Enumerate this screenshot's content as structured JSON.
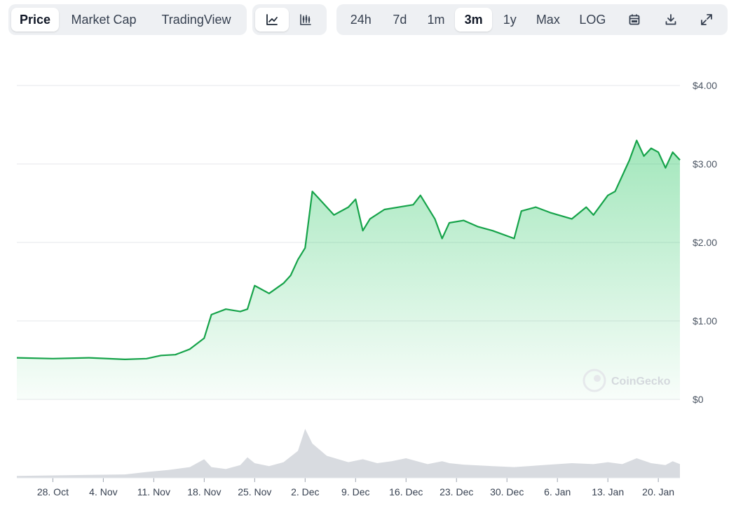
{
  "toolbar": {
    "metric_tabs": [
      {
        "label": "Price",
        "active": true
      },
      {
        "label": "Market Cap",
        "active": false
      },
      {
        "label": "TradingView",
        "active": false
      }
    ],
    "chart_type_buttons": [
      {
        "icon": "line-chart-icon",
        "active": true
      },
      {
        "icon": "candlestick-chart-icon",
        "active": false
      }
    ],
    "ranges": [
      {
        "label": "24h",
        "active": false
      },
      {
        "label": "7d",
        "active": false
      },
      {
        "label": "1m",
        "active": false
      },
      {
        "label": "3m",
        "active": true
      },
      {
        "label": "1y",
        "active": false
      },
      {
        "label": "Max",
        "active": false
      },
      {
        "label": "LOG",
        "active": false
      }
    ],
    "tool_icons": [
      "calendar-icon",
      "download-icon",
      "expand-icon"
    ]
  },
  "watermark": "CoinGecko",
  "colors": {
    "line": "#16a34a",
    "fill": "#22c55e",
    "volume": "#d1d5db",
    "grid": "#e5e7eb"
  },
  "chart_data": {
    "type": "area",
    "title": "",
    "xlabel": "",
    "ylabel": "",
    "ylim": [
      0,
      4
    ],
    "y_ticks": [
      {
        "v": 0,
        "label": "$0"
      },
      {
        "v": 1,
        "label": "$1.00"
      },
      {
        "v": 2,
        "label": "$2.00"
      },
      {
        "v": 3,
        "label": "$3.00"
      },
      {
        "v": 4,
        "label": "$4.00"
      }
    ],
    "x_ticks": [
      "28. Oct",
      "4. Nov",
      "11. Nov",
      "18. Nov",
      "25. Nov",
      "2. Dec",
      "9. Dec",
      "16. Dec",
      "23. Dec",
      "30. Dec",
      "6. Jan",
      "13. Jan",
      "20. Jan"
    ],
    "x_start": "2024-10-23",
    "x_end": "2025-01-23",
    "grid": true,
    "series": [
      {
        "name": "Price",
        "x": [
          "2024-10-23",
          "2024-10-28",
          "2024-11-02",
          "2024-11-07",
          "2024-11-10",
          "2024-11-12",
          "2024-11-14",
          "2024-11-16",
          "2024-11-18",
          "2024-11-19",
          "2024-11-21",
          "2024-11-23",
          "2024-11-24",
          "2024-11-25",
          "2024-11-27",
          "2024-11-29",
          "2024-11-30",
          "2024-12-01",
          "2024-12-02",
          "2024-12-03",
          "2024-12-04",
          "2024-12-06",
          "2024-12-08",
          "2024-12-09",
          "2024-12-10",
          "2024-12-11",
          "2024-12-13",
          "2024-12-15",
          "2024-12-17",
          "2024-12-18",
          "2024-12-20",
          "2024-12-21",
          "2024-12-22",
          "2024-12-24",
          "2024-12-26",
          "2024-12-28",
          "2024-12-31",
          "2025-01-01",
          "2025-01-03",
          "2025-01-05",
          "2025-01-08",
          "2025-01-10",
          "2025-01-11",
          "2025-01-13",
          "2025-01-14",
          "2025-01-16",
          "2025-01-17",
          "2025-01-18",
          "2025-01-19",
          "2025-01-20",
          "2025-01-21",
          "2025-01-22",
          "2025-01-23"
        ],
        "values": [
          0.53,
          0.52,
          0.53,
          0.51,
          0.52,
          0.56,
          0.57,
          0.64,
          0.78,
          1.08,
          1.15,
          1.12,
          1.15,
          1.45,
          1.35,
          1.48,
          1.58,
          1.78,
          1.93,
          2.65,
          2.55,
          2.35,
          2.45,
          2.55,
          2.15,
          2.3,
          2.42,
          2.45,
          2.48,
          2.6,
          2.3,
          2.05,
          2.25,
          2.28,
          2.2,
          2.15,
          2.05,
          2.4,
          2.45,
          2.38,
          2.3,
          2.45,
          2.35,
          2.6,
          2.65,
          3.05,
          3.3,
          3.1,
          3.2,
          3.15,
          2.95,
          3.15,
          3.05
        ]
      },
      {
        "name": "Volume",
        "x": [
          "2024-10-23",
          "2024-10-28",
          "2024-11-02",
          "2024-11-07",
          "2024-11-10",
          "2024-11-13",
          "2024-11-16",
          "2024-11-18",
          "2024-11-19",
          "2024-11-21",
          "2024-11-23",
          "2024-11-24",
          "2024-11-25",
          "2024-11-27",
          "2024-11-29",
          "2024-12-01",
          "2024-12-02",
          "2024-12-03",
          "2024-12-05",
          "2024-12-08",
          "2024-12-10",
          "2024-12-12",
          "2024-12-14",
          "2024-12-16",
          "2024-12-19",
          "2024-12-21",
          "2024-12-22",
          "2024-12-24",
          "2024-12-28",
          "2024-12-31",
          "2025-01-04",
          "2025-01-08",
          "2025-01-11",
          "2025-01-13",
          "2025-01-15",
          "2025-01-17",
          "2025-01-18",
          "2025-01-19",
          "2025-01-21",
          "2025-01-22",
          "2025-01-23"
        ],
        "values": [
          0.04,
          0.05,
          0.06,
          0.07,
          0.12,
          0.16,
          0.22,
          0.38,
          0.22,
          0.18,
          0.26,
          0.42,
          0.3,
          0.24,
          0.32,
          0.55,
          1.0,
          0.7,
          0.45,
          0.32,
          0.38,
          0.3,
          0.34,
          0.4,
          0.28,
          0.34,
          0.3,
          0.27,
          0.24,
          0.22,
          0.26,
          0.3,
          0.28,
          0.32,
          0.28,
          0.4,
          0.35,
          0.3,
          0.26,
          0.34,
          0.28
        ]
      }
    ]
  }
}
